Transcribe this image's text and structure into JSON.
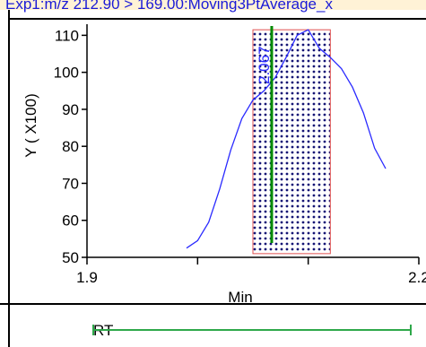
{
  "header": {
    "title": "Exp1:m/z 212.90 > 169.00:Moving3PtAverage_x"
  },
  "colors": {
    "header_bg": "#fff2d6",
    "header_text": "#1a1ad6",
    "trace": "#2a2aff",
    "marker": "#008a00",
    "integration_border": "#e05050",
    "rt_bar": "#2ea84a"
  },
  "chart_data": {
    "type": "line",
    "xlabel": "Min",
    "ylabel": "Y ( X100)",
    "xlim": [
      1.9,
      2.2
    ],
    "ylim": [
      50,
      113
    ],
    "x_ticks": [
      "1.9",
      "2.2"
    ],
    "y_ticks": [
      "110",
      "100",
      "90",
      "80",
      "70",
      "60",
      "50"
    ],
    "series": [
      {
        "x": [
          1.99,
          2.0,
          2.01,
          2.02,
          2.03,
          2.04,
          2.05,
          2.06,
          2.07,
          2.08,
          2.09,
          2.1,
          2.11,
          2.12,
          2.13,
          2.14,
          2.15,
          2.16,
          2.17
        ],
        "y": [
          52.5,
          54.5,
          59.5,
          68.5,
          79,
          87.5,
          92.5,
          95,
          98.5,
          104,
          110,
          111.5,
          106.5,
          104,
          101,
          96,
          89,
          79.5,
          74
        ]
      }
    ],
    "integration_region": {
      "x_start": 2.05,
      "x_end": 2.12,
      "y_bottom": 51,
      "y_top": 111.5
    },
    "marker": {
      "x": 2.067,
      "label": "2.067"
    }
  },
  "footer": {
    "rt_label": "RT"
  }
}
